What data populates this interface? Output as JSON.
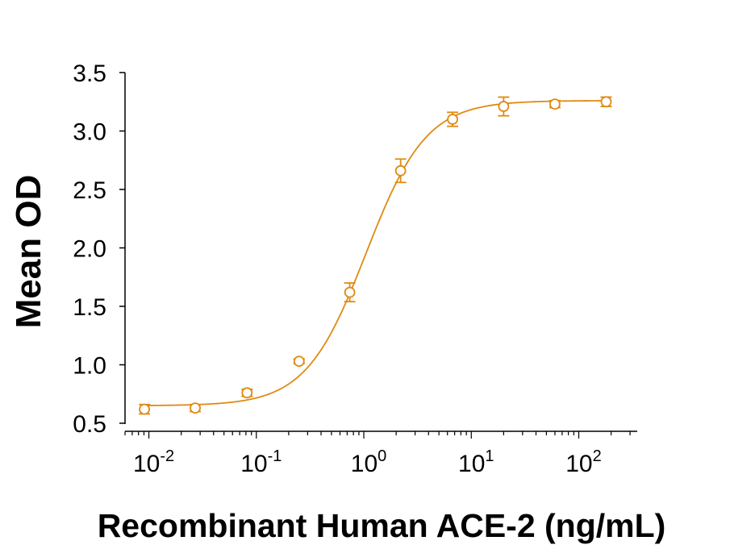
{
  "chart_data": {
    "type": "scatter",
    "xlabel": "Recombinant Human ACE-2 (ng/mL)",
    "ylabel": "Mean OD",
    "x_scale": "log",
    "xlim": [
      0.006,
      350
    ],
    "ylim": [
      0.5,
      3.5
    ],
    "y_ticks": [
      "0.5",
      "1.0",
      "1.5",
      "2.0",
      "2.5",
      "3.0",
      "3.5"
    ],
    "x_ticks": [
      {
        "base": "10",
        "exp": "-2",
        "value": 0.01
      },
      {
        "base": "10",
        "exp": "-1",
        "value": 0.1
      },
      {
        "base": "10",
        "exp": "0",
        "value": 1
      },
      {
        "base": "10",
        "exp": "1",
        "value": 10
      },
      {
        "base": "10",
        "exp": "2",
        "value": 100
      }
    ],
    "color": "#e08a10",
    "series": [
      {
        "x": [
          0.0091,
          0.027,
          0.082,
          0.25,
          0.74,
          2.2,
          6.7,
          20,
          60,
          180
        ],
        "y": [
          0.62,
          0.63,
          0.76,
          1.03,
          1.62,
          2.66,
          3.1,
          3.21,
          3.23,
          3.25
        ],
        "err": [
          0.04,
          0.03,
          0.03,
          0.02,
          0.08,
          0.1,
          0.06,
          0.08,
          0.03,
          0.04
        ]
      }
    ],
    "fit": {
      "type": "4PL",
      "bottom": 0.65,
      "top": 3.26,
      "ec50": 1.05,
      "hill": 1.55
    }
  }
}
